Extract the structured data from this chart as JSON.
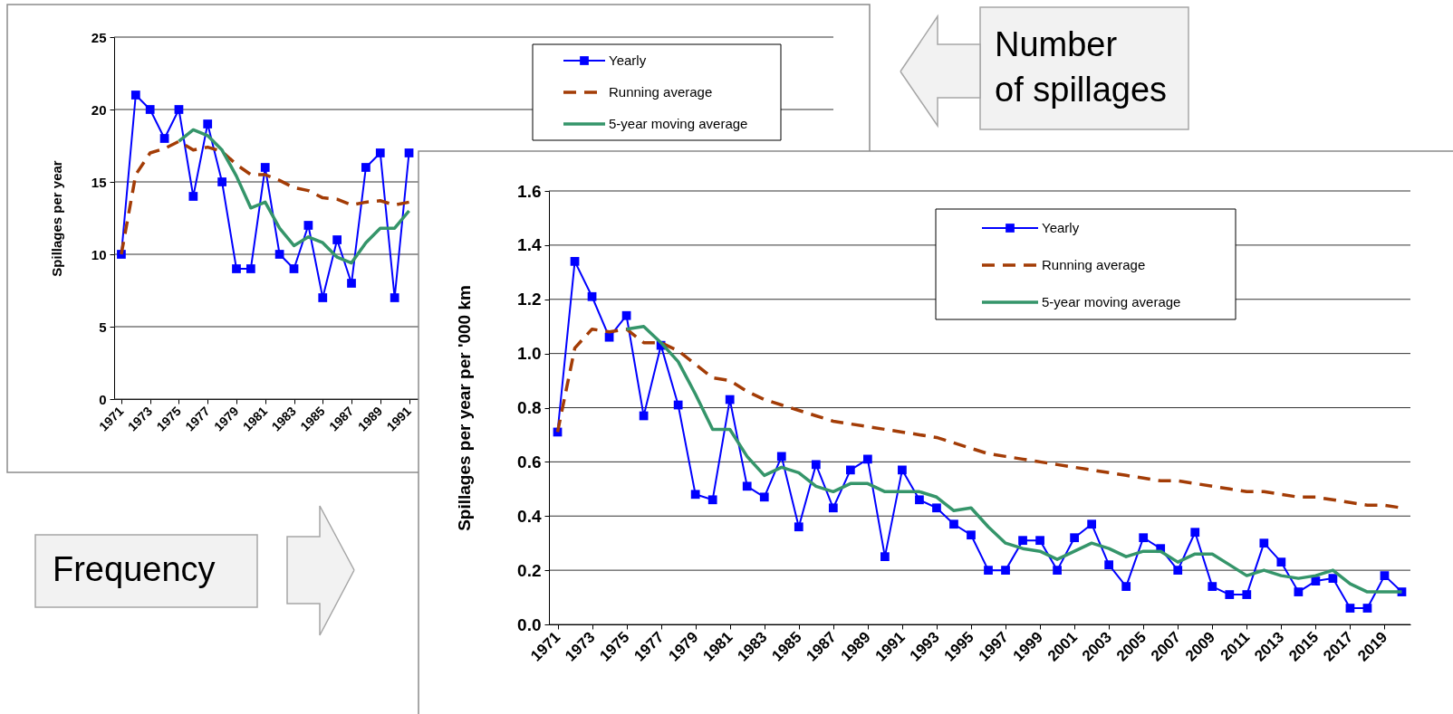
{
  "chart_data": [
    {
      "type": "line",
      "ylabel": "Spillages per year",
      "legend": "top right",
      "grid": "y",
      "x": [
        1971,
        1972,
        1973,
        1974,
        1975,
        1976,
        1977,
        1978,
        1979,
        1980,
        1981,
        1982,
        1983,
        1984,
        1985,
        1986,
        1987,
        1988,
        1989,
        1990,
        1991
      ],
      "xlim": [
        1970.5,
        2020.5
      ],
      "xticks": [
        1971,
        1973,
        1975,
        1977,
        1979,
        1981,
        1983,
        1985,
        1987,
        1989,
        1991
      ],
      "ylim": [
        0,
        25
      ],
      "yticks": [
        0,
        5,
        10,
        15,
        20,
        25
      ],
      "series": [
        {
          "name": "Yearly",
          "color": "#0000ff",
          "marker": "square",
          "line_style": "solid",
          "values": [
            10,
            21,
            20,
            18,
            20,
            14,
            19,
            15,
            9,
            9,
            16,
            10,
            9,
            12,
            7,
            11,
            8,
            16,
            17,
            7,
            17
          ]
        },
        {
          "name": "Running average",
          "color": "#a33c06",
          "marker": "none",
          "line_style": "dashed",
          "values": [
            10,
            15.5,
            17,
            17.3,
            17.8,
            17.2,
            17.4,
            17.1,
            16.2,
            15.5,
            15.5,
            15.1,
            14.6,
            14.4,
            13.9,
            13.8,
            13.4,
            13.6,
            13.7,
            13.4,
            13.6
          ]
        },
        {
          "name": "5-year moving average",
          "color": "#35956a",
          "marker": "none",
          "line_style": "solid",
          "values": [
            null,
            null,
            null,
            null,
            17.8,
            18.6,
            18.2,
            17.2,
            15.4,
            13.2,
            13.6,
            11.8,
            10.6,
            11.2,
            10.8,
            9.8,
            9.4,
            10.8,
            11.8,
            11.8,
            13
          ]
        }
      ],
      "annotations": [
        "Number\nof spillages"
      ]
    },
    {
      "type": "line",
      "ylabel": "Spillages per year per '000 km",
      "legend": "top right",
      "grid": "y",
      "x": [
        1971,
        1972,
        1973,
        1974,
        1975,
        1976,
        1977,
        1978,
        1979,
        1980,
        1981,
        1982,
        1983,
        1984,
        1985,
        1986,
        1987,
        1988,
        1989,
        1990,
        1991,
        1992,
        1993,
        1994,
        1995,
        1996,
        1997,
        1998,
        1999,
        2000,
        2001,
        2002,
        2003,
        2004,
        2005,
        2006,
        2007,
        2008,
        2009,
        2010,
        2011,
        2012,
        2013,
        2014,
        2015,
        2016,
        2017,
        2018,
        2019,
        2020
      ],
      "xlim": [
        1970.5,
        2020.5
      ],
      "xticks": [
        1971,
        1973,
        1975,
        1977,
        1979,
        1981,
        1983,
        1985,
        1987,
        1989,
        1991,
        1993,
        1995,
        1997,
        1999,
        2001,
        2003,
        2005,
        2007,
        2009,
        2011,
        2013,
        2015,
        2017,
        2019
      ],
      "ylim": [
        0,
        1.6
      ],
      "yticks": [
        {
          "value": 0,
          "label": "0.0"
        },
        {
          "value": 0.2,
          "label": "0.2"
        },
        {
          "value": 0.4,
          "label": "0.4"
        },
        {
          "value": 0.6,
          "label": "0.6"
        },
        {
          "value": 0.8,
          "label": "0.8"
        },
        {
          "value": 1,
          "label": "1.0"
        },
        {
          "value": 1.2,
          "label": "1.2"
        },
        {
          "value": 1.4,
          "label": "1.4"
        },
        {
          "value": 1.6,
          "label": "1.6"
        }
      ],
      "series": [
        {
          "name": "Yearly",
          "color": "#0000ff",
          "marker": "square",
          "line_style": "solid",
          "values": [
            0.71,
            1.34,
            1.21,
            1.06,
            1.14,
            0.77,
            1.03,
            0.81,
            0.48,
            0.46,
            0.83,
            0.51,
            0.47,
            0.62,
            0.36,
            0.59,
            0.43,
            0.57,
            0.61,
            0.25,
            0.57,
            0.46,
            0.43,
            0.37,
            0.33,
            0.2,
            0.2,
            0.31,
            0.31,
            0.2,
            0.32,
            0.37,
            0.22,
            0.14,
            0.32,
            0.28,
            0.2,
            0.34,
            0.14,
            0.11,
            0.11,
            0.3,
            0.23,
            0.12,
            0.16,
            0.17,
            0.06,
            0.06,
            0.18,
            0.12
          ]
        },
        {
          "name": "Running average",
          "color": "#a33c06",
          "marker": "none",
          "line_style": "dashed",
          "values": [
            0.71,
            1.02,
            1.09,
            1.08,
            1.09,
            1.04,
            1.04,
            1.01,
            0.96,
            0.91,
            0.9,
            0.86,
            0.83,
            0.81,
            0.79,
            0.77,
            0.75,
            0.74,
            0.73,
            0.72,
            0.71,
            0.7,
            0.69,
            0.67,
            0.65,
            0.63,
            0.62,
            0.61,
            0.6,
            0.59,
            0.58,
            0.57,
            0.56,
            0.55,
            0.54,
            0.53,
            0.53,
            0.52,
            0.51,
            0.5,
            0.49,
            0.49,
            0.48,
            0.47,
            0.47,
            0.46,
            0.45,
            0.44,
            0.44,
            0.43
          ]
        },
        {
          "name": "5-year moving average",
          "color": "#35956a",
          "marker": "none",
          "line_style": "solid",
          "values": [
            null,
            null,
            null,
            null,
            1.09,
            1.1,
            1.04,
            0.97,
            0.85,
            0.72,
            0.72,
            0.62,
            0.55,
            0.58,
            0.56,
            0.51,
            0.49,
            0.52,
            0.52,
            0.49,
            0.49,
            0.49,
            0.47,
            0.42,
            0.43,
            0.36,
            0.3,
            0.28,
            0.27,
            0.24,
            0.27,
            0.3,
            0.28,
            0.25,
            0.27,
            0.27,
            0.23,
            0.26,
            0.26,
            0.22,
            0.18,
            0.2,
            0.18,
            0.17,
            0.18,
            0.2,
            0.15,
            0.12,
            0.12,
            0.12
          ]
        }
      ],
      "annotations": [
        "Frequency"
      ]
    }
  ]
}
